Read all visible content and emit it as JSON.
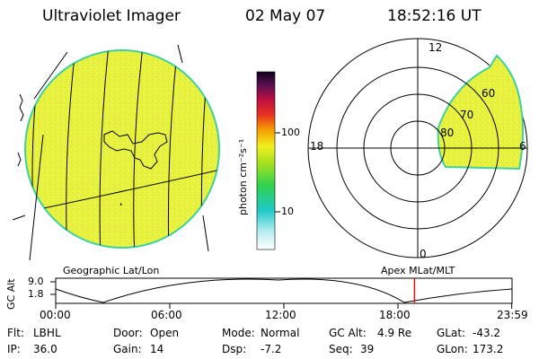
{
  "header": {
    "title": "Ultraviolet Imager",
    "date": "02 May 07",
    "time": "18:52:16 UT"
  },
  "colorbar": {
    "label": "photon cm⁻²s⁻¹",
    "ticks": [
      "100",
      "10"
    ]
  },
  "polar": {
    "clock_labels": [
      "12",
      "18",
      "6",
      "0"
    ],
    "lat_labels": [
      "60",
      "70",
      "80"
    ]
  },
  "panel_labels": {
    "geo": "Geographic Lat/Lon",
    "apex": "Apex MLat/MLT"
  },
  "timeline": {
    "ylabel": "GC Alt",
    "y_ticks": [
      "9.0",
      "1.8"
    ],
    "x_ticks": [
      "00:00",
      "06:00",
      "12:00",
      "18:00",
      "23:59"
    ],
    "current_marker_hour": 18.87
  },
  "status": [
    {
      "label": "Flt:",
      "value": "LBHL"
    },
    {
      "label": "Door:",
      "value": "Open"
    },
    {
      "label": "Mode:",
      "value": "Normal"
    },
    {
      "label": "GC Alt:",
      "value": "4.9 Re"
    },
    {
      "label": "GLat:",
      "value": "-43.2"
    },
    {
      "label": "IP:",
      "value": "36.0"
    },
    {
      "label": "Gain:",
      "value": "14"
    },
    {
      "label": "Dsp:",
      "value": "-7.2"
    },
    {
      "label": "Seq:",
      "value": "39"
    },
    {
      "label": "GLon:",
      "value": "173.2"
    }
  ],
  "colors": {
    "auroral_fill": "#e6f23a",
    "limb": "#3fd0a0",
    "marker": "#e01010"
  }
}
